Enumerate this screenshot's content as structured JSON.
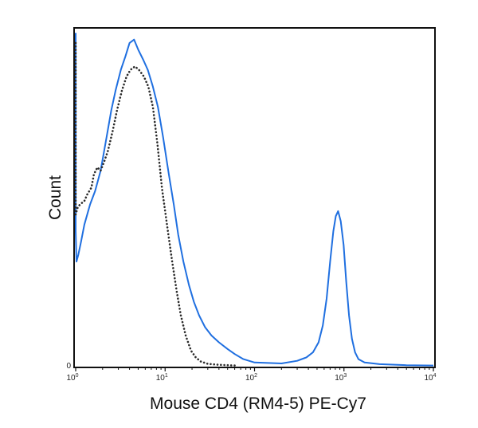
{
  "chart_data": {
    "type": "line",
    "xlabel": "Mouse CD4 (RM4-5) PE-Cy7",
    "ylabel": "Count",
    "x_scale": "log",
    "xlim": [
      1,
      10000
    ],
    "ylim": [
      0,
      100
    ],
    "grid": false,
    "legend": "none",
    "x_ticks": [
      {
        "base": "10",
        "exp": "0",
        "value": 1
      },
      {
        "base": "10",
        "exp": "1",
        "value": 10
      },
      {
        "base": "10",
        "exp": "2",
        "value": 100
      },
      {
        "base": "10",
        "exp": "3",
        "value": 1000
      },
      {
        "base": "10",
        "exp": "4",
        "value": 10000
      }
    ],
    "y_ticks": [
      {
        "label": "0",
        "value": 0
      }
    ],
    "series": [
      {
        "style": "solid",
        "color": "#1f6fe0",
        "points": [
          [
            1.0,
            99
          ],
          [
            1.0,
            40
          ],
          [
            1.02,
            31
          ],
          [
            1.07,
            33
          ],
          [
            1.15,
            37
          ],
          [
            1.25,
            42
          ],
          [
            1.45,
            48
          ],
          [
            1.65,
            52
          ],
          [
            1.9,
            58
          ],
          [
            2.15,
            66
          ],
          [
            2.5,
            76
          ],
          [
            2.8,
            82
          ],
          [
            3.2,
            88
          ],
          [
            3.6,
            92
          ],
          [
            4.0,
            96
          ],
          [
            4.5,
            97
          ],
          [
            5.0,
            94
          ],
          [
            5.7,
            91
          ],
          [
            6.4,
            88
          ],
          [
            7.3,
            83
          ],
          [
            8.3,
            77
          ],
          [
            9.5,
            68
          ],
          [
            11,
            57
          ],
          [
            12.5,
            48
          ],
          [
            14,
            39
          ],
          [
            16,
            31
          ],
          [
            18.5,
            24
          ],
          [
            21,
            19
          ],
          [
            24,
            15
          ],
          [
            28,
            11.5
          ],
          [
            33,
            9
          ],
          [
            40,
            7
          ],
          [
            50,
            5
          ],
          [
            60,
            3.5
          ],
          [
            75,
            2
          ],
          [
            100,
            1
          ],
          [
            200,
            0.7
          ],
          [
            300,
            1.5
          ],
          [
            380,
            2.5
          ],
          [
            450,
            4
          ],
          [
            520,
            7
          ],
          [
            580,
            12
          ],
          [
            640,
            20
          ],
          [
            700,
            31
          ],
          [
            760,
            40
          ],
          [
            810,
            44.5
          ],
          [
            860,
            46
          ],
          [
            920,
            43
          ],
          [
            990,
            36
          ],
          [
            1060,
            25
          ],
          [
            1140,
            15
          ],
          [
            1230,
            8
          ],
          [
            1330,
            4
          ],
          [
            1450,
            2
          ],
          [
            1700,
            1
          ],
          [
            2500,
            0.5
          ],
          [
            5000,
            0.2
          ],
          [
            10000,
            0.1
          ]
        ]
      },
      {
        "style": "dotted",
        "color": "#2a2a2a",
        "points": [
          [
            1.0,
            96
          ],
          [
            1.0,
            45
          ],
          [
            1.05,
            47
          ],
          [
            1.12,
            48
          ],
          [
            1.25,
            49
          ],
          [
            1.35,
            51
          ],
          [
            1.5,
            53
          ],
          [
            1.6,
            57
          ],
          [
            1.75,
            59
          ],
          [
            1.9,
            58
          ],
          [
            2.1,
            61
          ],
          [
            2.3,
            64
          ],
          [
            2.6,
            70
          ],
          [
            2.9,
            76
          ],
          [
            3.3,
            82
          ],
          [
            3.7,
            86
          ],
          [
            4.1,
            88
          ],
          [
            4.6,
            89
          ],
          [
            5.1,
            88
          ],
          [
            5.8,
            86
          ],
          [
            6.5,
            83
          ],
          [
            7.3,
            77
          ],
          [
            8.2,
            66
          ],
          [
            9.2,
            53
          ],
          [
            10.5,
            42
          ],
          [
            12,
            31
          ],
          [
            13.5,
            22
          ],
          [
            15,
            15
          ],
          [
            17,
            9
          ],
          [
            19.5,
            4.5
          ],
          [
            22,
            2.5
          ],
          [
            25,
            1.3
          ],
          [
            30,
            0.6
          ],
          [
            40,
            0.3
          ],
          [
            60,
            0.1
          ]
        ]
      }
    ]
  }
}
